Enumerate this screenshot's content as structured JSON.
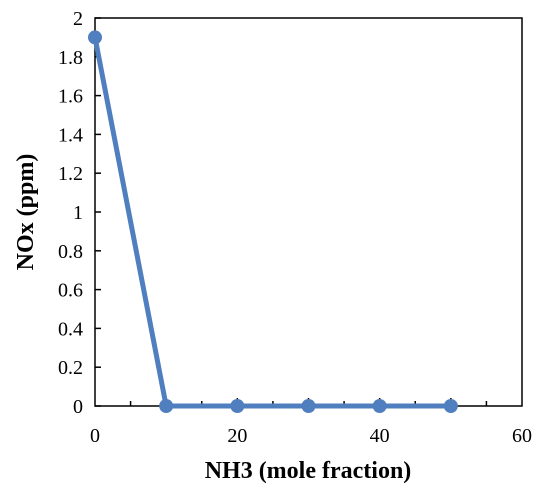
{
  "chart_data": {
    "type": "line",
    "title": "",
    "xlabel": "NH3 (mole fraction)",
    "ylabel": "NOx (ppm)",
    "xlim": [
      0,
      60
    ],
    "ylim": [
      0,
      2
    ],
    "x_ticks": [
      0,
      20,
      40,
      60
    ],
    "x_tick_labels": [
      "0",
      "20",
      "40",
      "60"
    ],
    "y_ticks": [
      0,
      0.2,
      0.4,
      0.6,
      0.8,
      1,
      1.2,
      1.4,
      1.6,
      1.8,
      2
    ],
    "y_tick_labels": [
      "0",
      "0.2",
      "0.4",
      "0.6",
      "0.8",
      "1",
      "1.2",
      "1.4",
      "1.6",
      "1.8",
      "2"
    ],
    "grid": false,
    "legend": "none",
    "series": [
      {
        "x": [
          0,
          10,
          20,
          30,
          40,
          50
        ],
        "values": [
          1.9,
          0,
          0,
          0,
          0,
          0
        ],
        "color": "#4f7fbf",
        "marker": "circle"
      }
    ]
  }
}
